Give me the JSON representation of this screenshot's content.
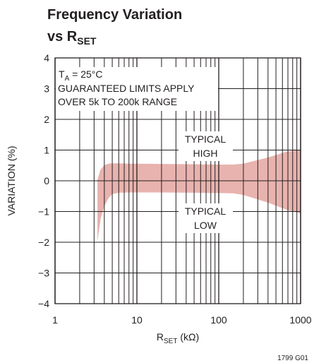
{
  "chart_data": {
    "type": "area",
    "title": {
      "line1": "Frequency Variation",
      "line2_prefix": "vs R",
      "line2_sub": "SET"
    },
    "xlabel": {
      "prefix": "R",
      "sub": "SET",
      "suffix": " (kΩ)"
    },
    "ylabel": "VARIATION (%)",
    "xscale": "log",
    "xlim": [
      1,
      1000
    ],
    "ylim": [
      -4,
      4
    ],
    "grid": true,
    "x_ticks": [
      {
        "value": 1,
        "label": "1"
      },
      {
        "value": 10,
        "label": "10"
      },
      {
        "value": 100,
        "label": "100"
      },
      {
        "value": 1000,
        "label": "1000"
      }
    ],
    "y_ticks": [
      {
        "value": 4,
        "label": "4"
      },
      {
        "value": 3,
        "label": "3"
      },
      {
        "value": 2,
        "label": "2"
      },
      {
        "value": 1,
        "label": "1"
      },
      {
        "value": 0,
        "label": "0"
      },
      {
        "value": -1,
        "label": "−1"
      },
      {
        "value": -2,
        "label": "−2"
      },
      {
        "value": -3,
        "label": "−3"
      },
      {
        "value": -4,
        "label": "−4"
      }
    ],
    "series": [
      {
        "name": "TYPICAL HIGH",
        "x": [
          3.3,
          3.6,
          4,
          4.5,
          5,
          6,
          8,
          10,
          20,
          50,
          100,
          150,
          200,
          400,
          700,
          1000
        ],
        "y": [
          0.0,
          0.35,
          0.5,
          0.55,
          0.56,
          0.56,
          0.55,
          0.55,
          0.54,
          0.53,
          0.52,
          0.52,
          0.55,
          0.75,
          0.95,
          1.0
        ]
      },
      {
        "name": "TYPICAL LOW",
        "x": [
          3.3,
          3.6,
          4,
          4.5,
          5,
          6,
          8,
          10,
          20,
          50,
          100,
          150,
          200,
          400,
          700,
          1000
        ],
        "y": [
          -1.9,
          -1.2,
          -0.8,
          -0.55,
          -0.42,
          -0.38,
          -0.37,
          -0.37,
          -0.37,
          -0.38,
          -0.39,
          -0.4,
          -0.45,
          -0.7,
          -0.95,
          -1.05
        ]
      }
    ],
    "band_color": "#e8b3ae",
    "annotations": {
      "condition_prefix": "T",
      "condition_sub": "A",
      "condition_suffix": " = 25°C",
      "limits_line1": "GUARANTEED LIMITS APPLY",
      "limits_line2": "OVER 5k TO 200k RANGE",
      "typical_high_line1": "TYPICAL",
      "typical_high_line2": "HIGH",
      "typical_low_line1": "TYPICAL",
      "typical_low_line2": "LOW"
    },
    "figure_code": "1799 G01"
  }
}
